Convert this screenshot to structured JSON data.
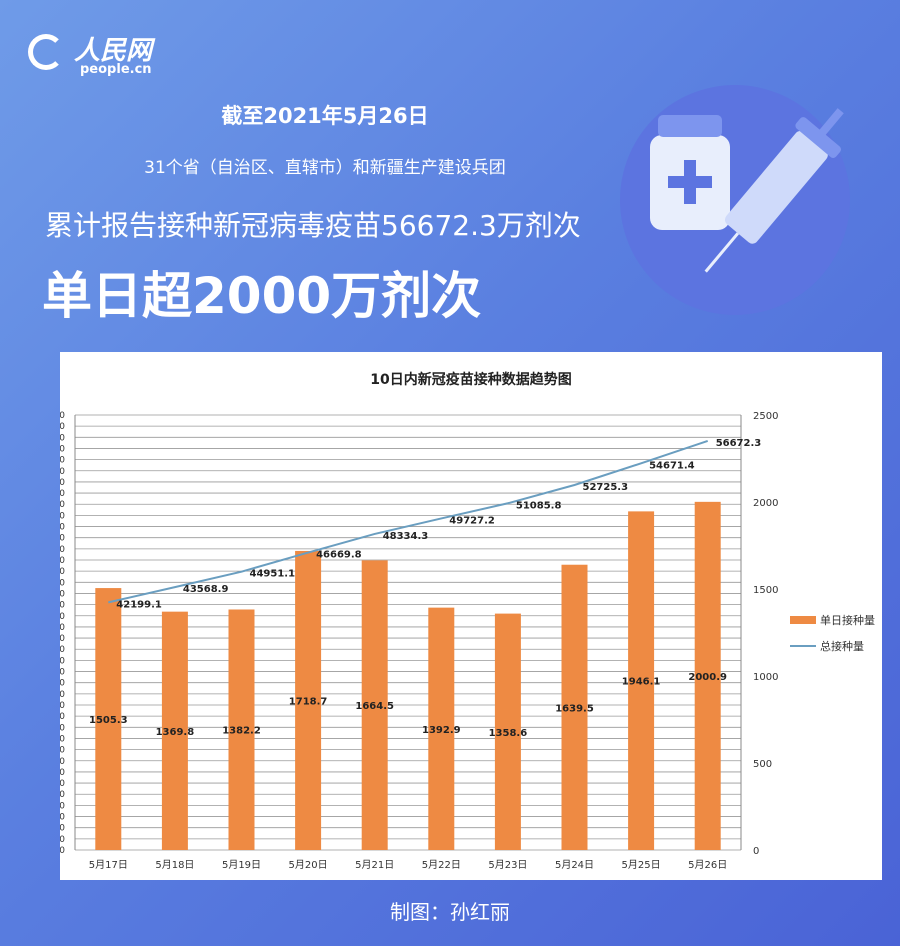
{
  "logo": {
    "cn": "人民网",
    "en": "people.cn"
  },
  "header": {
    "date": "截至2021年5月26日",
    "scope": "31个省（自治区、直辖市）和新疆生产建设兵团",
    "total": "累计报告接种新冠病毒疫苗56672.3万剂次",
    "headline": "单日超2000万剂次"
  },
  "footer": {
    "credit": "制图：孙红丽"
  },
  "colors": {
    "bar": "#ee8a43",
    "line": "#6a9ec0",
    "background": "#5a7fe0"
  },
  "chart_data": {
    "type": "bar+line",
    "title": "10日内新冠疫苗接种数据趋势图",
    "categories": [
      "5月17日",
      "5月18日",
      "5月19日",
      "5月20日",
      "5月21日",
      "5月22日",
      "5月23日",
      "5月24日",
      "5月25日",
      "5月26日"
    ],
    "series": [
      {
        "name": "单日接种量",
        "type": "bar",
        "axis": "right",
        "values": [
          1505.3,
          1369.8,
          1382.2,
          1718.7,
          1664.5,
          1392.9,
          1358.6,
          1639.5,
          1946.1,
          2000.9
        ]
      },
      {
        "name": "总接种量",
        "type": "line",
        "axis": "left",
        "values": [
          42199.1,
          43568.9,
          44951.1,
          46669.8,
          48334.3,
          49727.2,
          51085.8,
          52725.3,
          54671.4,
          56672.3
        ]
      }
    ],
    "left_axis": {
      "ylim": [
        20000,
        59000
      ],
      "step": 1000
    },
    "right_axis": {
      "ylim": [
        0,
        2500
      ],
      "step": 500
    },
    "grid": true,
    "legend": "right"
  }
}
